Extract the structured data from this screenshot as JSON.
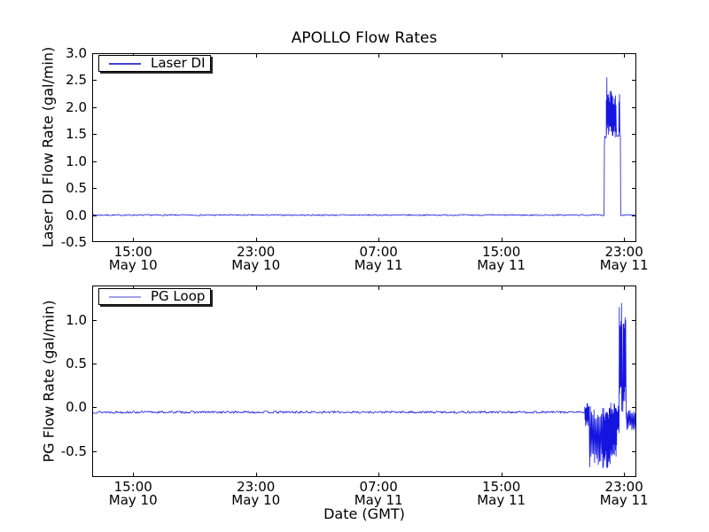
{
  "figure": {
    "title": "APOLLO Flow Rates",
    "xlabel": "Date (GMT)",
    "background": "#ffffff",
    "frame_color": "#000000",
    "line_color": "#1515e0"
  },
  "chart_data": [
    {
      "type": "line",
      "title": "APOLLO Flow Rates",
      "ylabel": "Laser DI Flow Rate (gal/min)",
      "legend": {
        "label": "Laser DI",
        "sample_color": "#4343d5",
        "position": "upper left"
      },
      "line_color": "#1515e0",
      "ylim": [
        -0.5,
        3.0
      ],
      "yticks": [
        3.0,
        2.5,
        2.0,
        1.5,
        1.0,
        0.5,
        0.0,
        -0.5
      ],
      "x_hours_lim": [
        12.33,
        47.8
      ],
      "xticks": [
        {
          "hours": 15,
          "time": "15:00",
          "date": "May 10"
        },
        {
          "hours": 23,
          "time": "23:00",
          "date": "May 10"
        },
        {
          "hours": 31,
          "time": "07:00",
          "date": "May 11"
        },
        {
          "hours": 39,
          "time": "15:00",
          "date": "May 11"
        },
        {
          "hours": 47,
          "time": "23:00",
          "date": "May 11"
        }
      ],
      "grid": false,
      "summary": "Flow is 0 gal/min across May 10-11 except a burst late May 11 (~21:40-22:45 GMT): step to ~1.45 plateau with noisy excursions between ~1.45 and ~2.3, peak 2.55, then back to 0.",
      "segments": [
        {
          "kind": "flat",
          "t": [
            12.33,
            45.7
          ],
          "v": 0.0,
          "jitter": 0.012
        },
        {
          "kind": "points",
          "pts": [
            [
              45.72,
              1.3
            ],
            [
              45.74,
              1.46
            ]
          ]
        },
        {
          "kind": "flat",
          "t": [
            45.74,
            45.84
          ],
          "v": 1.45,
          "jitter": 0.02
        },
        {
          "kind": "noise",
          "t": [
            45.84,
            45.87
          ],
          "range": [
            1.45,
            2.2
          ]
        },
        {
          "kind": "points",
          "pts": [
            [
              45.88,
              2.55
            ],
            [
              45.895,
              1.7
            ]
          ]
        },
        {
          "kind": "noise",
          "t": [
            45.9,
            46.22
          ],
          "range": [
            1.43,
            2.3
          ]
        },
        {
          "kind": "noise",
          "t": [
            46.22,
            46.5
          ],
          "range": [
            1.44,
            2.22
          ]
        },
        {
          "kind": "flat",
          "t": [
            46.52,
            46.66
          ],
          "v": 1.46,
          "jitter": 0.03
        },
        {
          "kind": "noise",
          "t": [
            46.67,
            46.74
          ],
          "range": [
            1.45,
            2.25
          ]
        },
        {
          "kind": "points",
          "pts": [
            [
              46.76,
              1.45
            ],
            [
              46.78,
              0.02
            ]
          ]
        },
        {
          "kind": "flat",
          "t": [
            46.78,
            47.8
          ],
          "v": 0.0,
          "jitter": 0.012
        }
      ]
    },
    {
      "type": "line",
      "ylabel": "PG Flow Rate (gal/min)",
      "xlabel": "Date (GMT)",
      "legend": {
        "label": "PG Loop",
        "sample_color": "#a3a3ea",
        "position": "upper left"
      },
      "line_color": "#1515e0",
      "ylim": [
        -0.8,
        1.4
      ],
      "yticks": [
        1.0,
        0.5,
        0.0,
        -0.5
      ],
      "x_hours_lim": [
        12.33,
        47.8
      ],
      "xticks": [
        {
          "hours": 15,
          "time": "15:00",
          "date": "May 10"
        },
        {
          "hours": 23,
          "time": "23:00",
          "date": "May 10"
        },
        {
          "hours": 31,
          "time": "07:00",
          "date": "May 11"
        },
        {
          "hours": 39,
          "time": "15:00",
          "date": "May 11"
        },
        {
          "hours": 47,
          "time": "23:00",
          "date": "May 11"
        }
      ],
      "grid": false,
      "summary": "Flow steady at ~-0.05 gal/min until late May 11 (~20:30 GMT), then dense noisy oscillation between ~-0.75 and ~+0.05, two sharp positive spikes to ~1.2 near 23:00, then noise around -0.15 to the end.",
      "segments": [
        {
          "kind": "flat",
          "t": [
            12.33,
            44.44
          ],
          "v": -0.055,
          "jitter": 0.013
        },
        {
          "kind": "noise",
          "t": [
            44.44,
            44.72
          ],
          "range": [
            -0.22,
            0.05
          ]
        },
        {
          "kind": "noise",
          "t": [
            44.72,
            45.6
          ],
          "range": [
            -0.74,
            0.04
          ]
        },
        {
          "kind": "noise",
          "t": [
            45.6,
            46.1
          ],
          "range": [
            -0.72,
            0.02
          ]
        },
        {
          "kind": "noise",
          "t": [
            46.1,
            46.55
          ],
          "range": [
            -0.6,
            0.05
          ]
        },
        {
          "kind": "noise",
          "t": [
            46.55,
            46.68
          ],
          "range": [
            -0.3,
            0.02
          ]
        },
        {
          "kind": "noise",
          "t": [
            46.69,
            46.9
          ],
          "range": [
            -0.05,
            1.22
          ]
        },
        {
          "kind": "points",
          "pts": [
            [
              46.92,
              -0.05
            ]
          ]
        },
        {
          "kind": "noise",
          "t": [
            46.96,
            47.12
          ],
          "range": [
            -0.08,
            1.16
          ]
        },
        {
          "kind": "points",
          "pts": [
            [
              47.14,
              -0.12
            ]
          ]
        },
        {
          "kind": "noise",
          "t": [
            47.15,
            47.8
          ],
          "range": [
            -0.26,
            -0.02
          ]
        }
      ]
    }
  ]
}
